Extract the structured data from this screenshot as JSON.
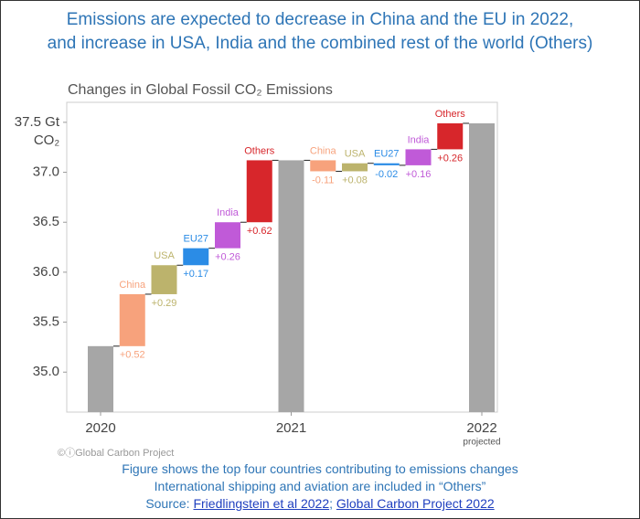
{
  "header": {
    "lines": [
      "Emissions are expected to decrease in China and the EU in 2022,",
      "and increase in USA, India and the combined rest of the world (Others)"
    ]
  },
  "chart_data": {
    "type": "waterfall",
    "title": "Changes in Global Fossil CO₂ Emissions",
    "ylim": [
      34.6,
      37.7
    ],
    "yticks": [
      {
        "value": 35.0,
        "label": "35.0"
      },
      {
        "value": 35.5,
        "label": "35.5"
      },
      {
        "value": 36.0,
        "label": "36.0"
      },
      {
        "value": 36.5,
        "label": "36.5"
      },
      {
        "value": 37.0,
        "label": "37.0"
      },
      {
        "value": 37.5,
        "label": "37.5 Gt"
      }
    ],
    "y_unit": "CO₂",
    "totals": {
      "labels": [
        "2020",
        "2021",
        "2022"
      ],
      "values": [
        35.26,
        37.12,
        37.49
      ],
      "color": "#a6a6a6"
    },
    "x_note": "projected",
    "step_colors": [
      "#f7a27c",
      "#bcb36c",
      "#2b8ce6",
      "#c05ad8",
      "#d7262b"
    ],
    "steps": [
      {
        "names": [
          "China",
          "USA",
          "EU27",
          "India",
          "Others"
        ],
        "values": [
          0.52,
          0.29,
          0.17,
          0.26,
          0.62
        ],
        "value_labels": [
          "+0.52",
          "+0.29",
          "+0.17",
          "+0.26",
          "+0.62"
        ]
      },
      {
        "names": [
          "China",
          "USA",
          "EU27",
          "India",
          "Others"
        ],
        "values": [
          -0.11,
          0.08,
          -0.02,
          0.16,
          0.26
        ],
        "value_labels": [
          "-0.11",
          "+0.08",
          "-0.02",
          "+0.16",
          "+0.26"
        ]
      }
    ],
    "credit": "©ⓘGlobal Carbon Project"
  },
  "footer": {
    "lines": [
      "Figure shows the top four countries contributing to emissions changes",
      "International shipping and aviation are included in “Others”"
    ],
    "source_label": "Source:",
    "separator": ";",
    "links": [
      "Friedlingstein et al 2022",
      "Global Carbon Project 2022"
    ]
  }
}
